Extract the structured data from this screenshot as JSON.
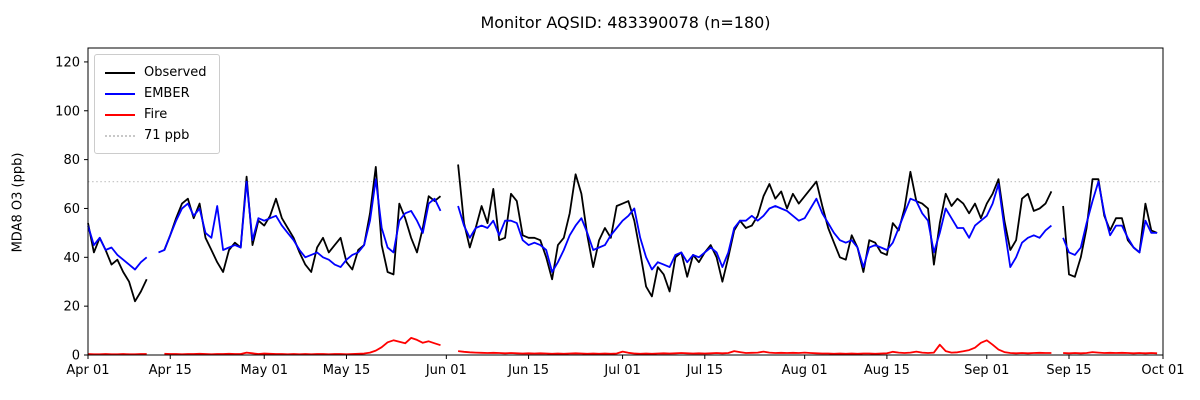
{
  "figure": {
    "title": "Monitor AQSID: 483390078 (n=180)"
  },
  "axes": {
    "ylabel": "MDA8 O3 (ppb)",
    "yticks": [
      0,
      20,
      40,
      60,
      80,
      100,
      120
    ],
    "xticks": [
      {
        "day": 0,
        "label": "Apr 01"
      },
      {
        "day": 14,
        "label": "Apr 15"
      },
      {
        "day": 30,
        "label": "May 01"
      },
      {
        "day": 44,
        "label": "May 15"
      },
      {
        "day": 61,
        "label": "Jun 01"
      },
      {
        "day": 75,
        "label": "Jun 15"
      },
      {
        "day": 91,
        "label": "Jul 01"
      },
      {
        "day": 105,
        "label": "Jul 15"
      },
      {
        "day": 122,
        "label": "Aug 01"
      },
      {
        "day": 136,
        "label": "Aug 15"
      },
      {
        "day": 153,
        "label": "Sep 01"
      },
      {
        "day": 167,
        "label": "Sep 15"
      },
      {
        "day": 183,
        "label": "Oct 01"
      }
    ]
  },
  "legend": {
    "entries": [
      {
        "label": "Observed",
        "color": "#000000",
        "style": "solid"
      },
      {
        "label": "EMBER",
        "color": "#0000ff",
        "style": "solid"
      },
      {
        "label": "Fire",
        "color": "#ff0000",
        "style": "solid"
      },
      {
        "label": "71 ppb",
        "color": "#c8c8c8",
        "style": "dotted"
      }
    ]
  },
  "chart_data": {
    "type": "line",
    "title": "Monitor AQSID: 483390078 (n=180)",
    "xlabel": "",
    "ylabel": "MDA8 O3 (ppb)",
    "x_unit": "days since Apr 01",
    "x_domain_days": 183,
    "ylim": [
      0,
      125.7
    ],
    "grid": false,
    "legend_position": "upper left",
    "threshold": {
      "value": 71,
      "label": "71 ppb",
      "color": "#c8c8c8",
      "style": "dotted"
    },
    "series": [
      {
        "name": "Observed",
        "color": "#000000",
        "values": [
          54,
          42,
          48,
          43,
          37,
          39,
          34,
          30,
          22,
          26,
          31,
          null,
          null,
          43,
          49,
          56,
          62,
          64,
          56,
          62,
          48,
          43,
          38,
          34,
          43,
          46,
          44,
          73,
          45,
          55,
          53,
          57,
          64,
          56,
          52,
          48,
          42,
          37,
          34,
          44,
          48,
          42,
          45,
          48,
          38,
          35,
          43,
          45,
          58,
          77,
          45,
          34,
          33,
          62,
          56,
          48,
          42,
          52,
          65,
          63,
          65,
          null,
          null,
          78,
          54,
          44,
          52,
          61,
          54,
          68,
          47,
          48,
          66,
          63,
          49,
          48,
          48,
          47,
          40,
          31,
          45,
          48,
          58,
          74,
          66,
          49,
          36,
          47,
          52,
          48,
          61,
          62,
          63,
          55,
          42,
          28,
          24,
          36,
          33,
          26,
          40,
          42,
          32,
          41,
          38,
          42,
          45,
          40,
          30,
          40,
          51,
          55,
          52,
          53,
          57,
          65,
          70,
          64,
          67,
          60,
          66,
          62,
          65,
          68,
          71,
          61,
          52,
          46,
          40,
          39,
          49,
          44,
          34,
          47,
          46,
          42,
          41,
          54,
          51,
          60,
          75,
          63,
          62,
          60,
          37,
          54,
          66,
          61,
          64,
          62,
          58,
          62,
          56,
          62,
          66,
          72,
          55,
          43,
          47,
          64,
          66,
          59,
          60,
          62,
          67,
          null,
          61,
          33,
          32,
          40,
          52,
          72,
          72,
          57,
          51,
          56,
          56,
          47,
          44,
          42,
          62,
          51,
          50
        ]
      },
      {
        "name": "EMBER",
        "color": "#0000ff",
        "values": [
          53,
          45,
          48,
          43,
          44,
          41,
          39,
          37,
          35,
          38,
          40,
          null,
          42,
          43,
          49,
          55,
          60,
          62,
          57,
          60,
          50,
          48,
          61,
          43,
          44,
          45,
          44,
          71,
          47,
          56,
          55,
          56,
          57,
          53,
          50,
          47,
          43,
          40,
          41,
          42,
          40,
          39,
          37,
          36,
          39,
          41,
          42,
          45,
          55,
          72,
          52,
          44,
          42,
          55,
          58,
          59,
          55,
          50,
          62,
          64,
          59,
          null,
          null,
          61,
          53,
          48,
          52,
          53,
          52,
          55,
          49,
          55,
          55,
          54,
          47,
          45,
          46,
          45,
          43,
          34,
          38,
          43,
          49,
          53,
          56,
          50,
          43,
          44,
          45,
          49,
          52,
          55,
          57,
          60,
          48,
          40,
          35,
          38,
          37,
          36,
          41,
          42,
          38,
          41,
          40,
          42,
          44,
          42,
          36,
          42,
          52,
          55,
          55,
          57,
          55,
          57,
          60,
          61,
          60,
          59,
          57,
          55,
          56,
          60,
          64,
          58,
          54,
          50,
          47,
          46,
          47,
          44,
          36,
          44,
          45,
          44,
          43,
          46,
          52,
          58,
          64,
          63,
          58,
          55,
          42,
          50,
          60,
          56,
          52,
          52,
          48,
          53,
          55,
          57,
          62,
          70,
          52,
          36,
          40,
          46,
          48,
          49,
          48,
          51,
          53,
          null,
          48,
          42,
          41,
          44,
          54,
          63,
          71,
          58,
          49,
          53,
          53,
          48,
          44,
          42,
          55,
          50,
          50
        ]
      },
      {
        "name": "Fire",
        "color": "#ff0000",
        "values": [
          0.4,
          0.3,
          0.3,
          0.4,
          0.3,
          0.3,
          0.4,
          0.3,
          0.3,
          0.4,
          0.4,
          null,
          null,
          0.5,
          0.4,
          0.4,
          0.3,
          0.4,
          0.4,
          0.5,
          0.4,
          0.3,
          0.4,
          0.4,
          0.5,
          0.4,
          0.4,
          1.0,
          0.7,
          0.4,
          0.6,
          0.5,
          0.4,
          0.4,
          0.3,
          0.4,
          0.3,
          0.4,
          0.3,
          0.4,
          0.4,
          0.3,
          0.4,
          0.4,
          0.3,
          0.4,
          0.5,
          0.6,
          1.0,
          1.8,
          3.2,
          5.2,
          6.0,
          5.4,
          4.8,
          7.0,
          6.2,
          5.0,
          5.6,
          4.8,
          4.0,
          null,
          null,
          1.6,
          1.3,
          1.1,
          1.0,
          0.9,
          0.8,
          0.9,
          0.8,
          0.7,
          0.8,
          0.7,
          0.6,
          0.7,
          0.6,
          0.7,
          0.6,
          0.5,
          0.6,
          0.5,
          0.6,
          0.7,
          0.6,
          0.5,
          0.6,
          0.5,
          0.6,
          0.5,
          0.6,
          1.4,
          0.9,
          0.6,
          0.5,
          0.6,
          0.5,
          0.6,
          0.7,
          0.6,
          0.7,
          0.8,
          0.7,
          0.6,
          0.7,
          0.6,
          0.7,
          0.8,
          0.7,
          0.8,
          1.6,
          1.2,
          0.8,
          0.9,
          1.0,
          1.4,
          1.0,
          0.8,
          0.9,
          0.8,
          0.9,
          0.8,
          1.0,
          0.8,
          0.7,
          0.6,
          0.6,
          0.5,
          0.6,
          0.5,
          0.6,
          0.5,
          0.6,
          0.6,
          0.5,
          0.6,
          0.7,
          1.3,
          1.0,
          0.8,
          1.0,
          1.4,
          1.0,
          0.8,
          1.0,
          4.2,
          1.6,
          1.0,
          1.1,
          1.5,
          2.0,
          3.0,
          5.0,
          6.0,
          4.2,
          2.2,
          1.2,
          0.8,
          0.7,
          0.8,
          0.7,
          0.8,
          0.9,
          0.8,
          0.8,
          null,
          0.8,
          0.7,
          0.8,
          0.7,
          0.8,
          1.2,
          1.0,
          0.8,
          0.9,
          0.8,
          0.9,
          0.8,
          0.7,
          0.8,
          0.7,
          0.8,
          0.7
        ]
      }
    ]
  }
}
